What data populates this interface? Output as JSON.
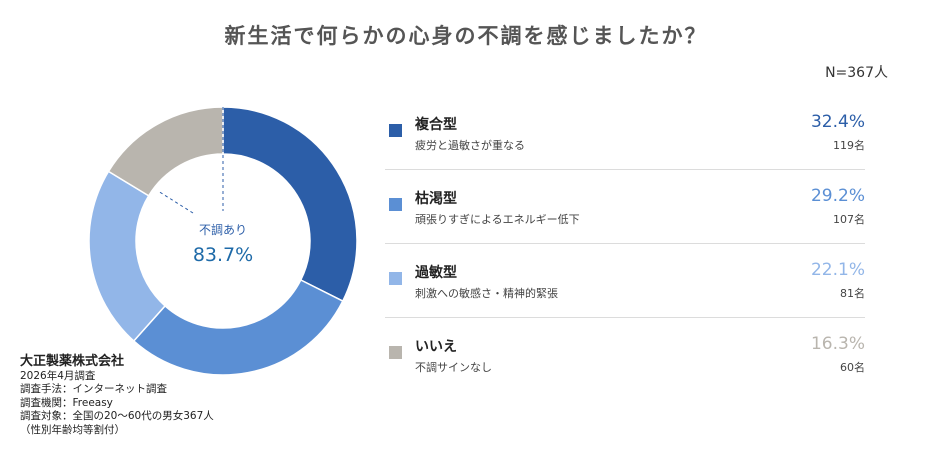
{
  "title": "新生活で何らかの心身の不調を感じましたか？",
  "sample": "N=367人",
  "center": {
    "label": "不調あり",
    "value": "83.7%"
  },
  "chart_data": {
    "type": "pie",
    "title": "新生活で何らかの心身の不調を感じましたか？",
    "categories": [
      "複合型",
      "枯渇型",
      "過敏型",
      "いいえ"
    ],
    "values": [
      32.4,
      29.2,
      22.1,
      16.3
    ],
    "counts": [
      119,
      107,
      81,
      60
    ],
    "colors": [
      "#2c5ea8",
      "#5b8fd4",
      "#92b6e8",
      "#b9b5ae"
    ],
    "legend_placement": "right"
  },
  "legend": [
    {
      "name": "複合型",
      "desc": "疲労と過敏さが重なる",
      "pct": "32.4%",
      "count": "119名",
      "color": "#2c5ea8"
    },
    {
      "name": "枯渇型",
      "desc": "頑張りすぎによるエネルギー低下",
      "pct": "29.2%",
      "count": "107名",
      "color": "#5b8fd4"
    },
    {
      "name": "過敏型",
      "desc": "刺激への敏感さ・精神的緊張",
      "pct": "22.1%",
      "count": "81名",
      "color": "#92b6e8"
    },
    {
      "name": "いいえ",
      "desc": "不調サインなし",
      "pct": "16.3%",
      "count": "60名",
      "color": "#b9b5ae"
    }
  ],
  "footer": {
    "company": "大正製薬株式会社",
    "lines": [
      "2026年4月調査",
      "調査手法：インターネット調査",
      "調査機関：Freeasy",
      "調査対象：全国の20～60代の男女367人",
      "（性別年齢均等割付）"
    ]
  }
}
